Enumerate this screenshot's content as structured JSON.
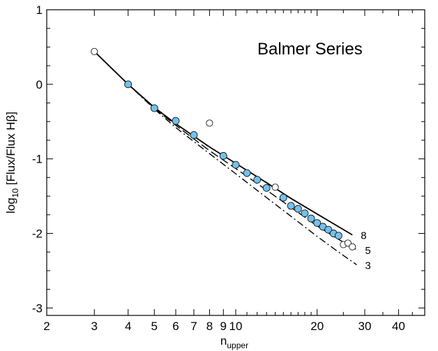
{
  "chart_data": {
    "type": "scatter",
    "annotation": "Balmer Series",
    "xlabel": {
      "main": "n",
      "sub": "upper"
    },
    "ylabel": {
      "prefix": "log",
      "sub": "10",
      "rest": " [Flux/Flux Hβ]"
    },
    "x_scale": "log",
    "xlim": [
      2,
      50
    ],
    "ylim": [
      -3.1,
      1
    ],
    "x_ticks": [
      2,
      3,
      4,
      5,
      6,
      7,
      8,
      9,
      10,
      20,
      30,
      40
    ],
    "x_tick_labels": [
      "2",
      "3",
      "4",
      "5",
      "6",
      "7",
      "8",
      "9",
      "10",
      "20",
      "30",
      "40"
    ],
    "y_ticks": [
      1,
      0,
      -1,
      -2,
      -3
    ],
    "y_tick_labels": [
      "1",
      "0",
      "-1",
      "-2",
      "-3"
    ],
    "filled_points": {
      "color": "#72c2ee",
      "x": [
        4,
        5,
        6,
        7,
        9,
        10,
        11,
        12,
        13,
        15,
        16,
        17,
        18,
        19,
        20,
        21,
        22,
        23,
        24
      ],
      "y": [
        0.0,
        -0.32,
        -0.49,
        -0.68,
        -0.96,
        -1.08,
        -1.19,
        -1.28,
        -1.39,
        -1.52,
        -1.63,
        -1.67,
        -1.73,
        -1.8,
        -1.86,
        -1.91,
        -1.95,
        -2.0,
        -2.03
      ]
    },
    "open_points": {
      "x": [
        3,
        8,
        14,
        25,
        26,
        27
      ],
      "y": [
        0.44,
        -0.52,
        -1.38,
        -2.15,
        -2.13,
        -2.18
      ]
    },
    "model_lines": [
      {
        "label": "8",
        "style": "solid",
        "x": [
          3,
          4,
          5,
          6,
          8,
          10,
          13,
          16,
          20,
          24,
          27
        ],
        "y": [
          0.44,
          0.0,
          -0.31,
          -0.53,
          -0.84,
          -1.06,
          -1.32,
          -1.53,
          -1.74,
          -1.91,
          -2.02
        ]
      },
      {
        "label": "5",
        "style": "dashed",
        "x": [
          3,
          4,
          5,
          6,
          8,
          10,
          13,
          16,
          20,
          24,
          28
        ],
        "y": [
          0.44,
          0.0,
          -0.32,
          -0.55,
          -0.89,
          -1.13,
          -1.42,
          -1.65,
          -1.9,
          -2.08,
          -2.22
        ]
      },
      {
        "label": "3",
        "style": "dashdot",
        "x": [
          3,
          4,
          5,
          6,
          8,
          10,
          13,
          16,
          20,
          24,
          28
        ],
        "y": [
          0.44,
          0.0,
          -0.33,
          -0.58,
          -0.93,
          -1.2,
          -1.52,
          -1.77,
          -2.04,
          -2.25,
          -2.42
        ]
      }
    ]
  }
}
